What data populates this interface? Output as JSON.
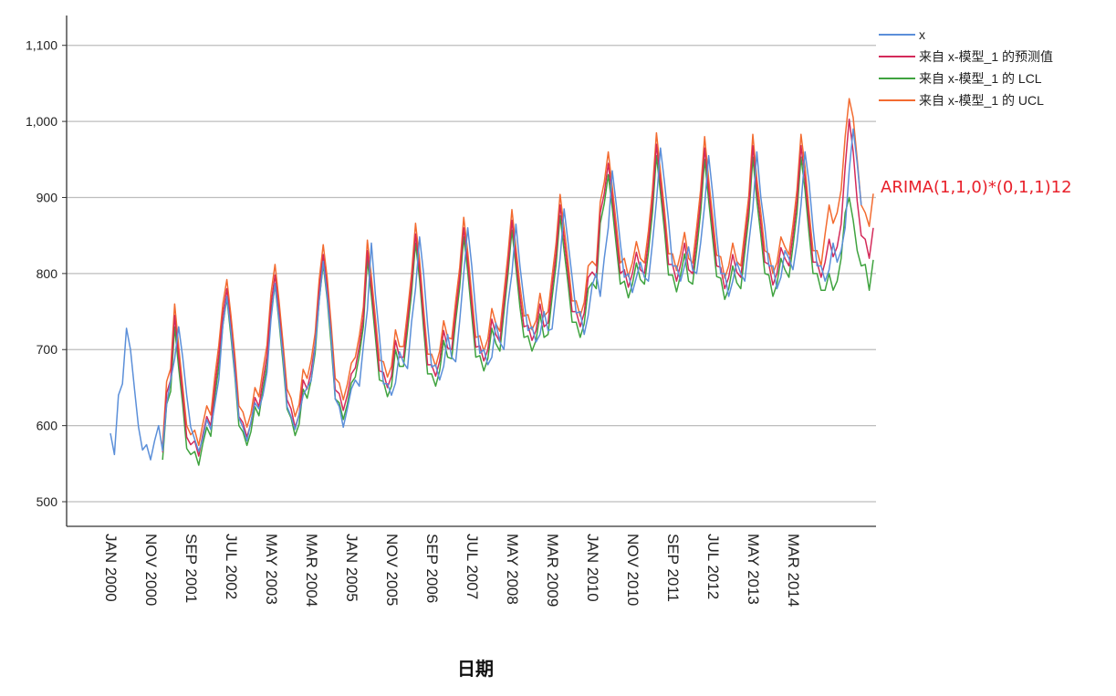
{
  "chart_data": {
    "type": "line",
    "title": "",
    "xlabel": "日期",
    "ylabel": "",
    "ylim": [
      470,
      1170
    ],
    "yticks": [
      500,
      600,
      700,
      800,
      900,
      1000,
      1100
    ],
    "ytick_labels": [
      "500",
      "600",
      "700",
      "800",
      "900",
      "1,000",
      "1,100"
    ],
    "grid": true,
    "legend_position": "top-right",
    "annotation": {
      "text": "ARIMA(1,1,0)*(0,1,1)12",
      "color": "#e8202a"
    },
    "xtick_labels": [
      "JAN 2000",
      "NOV 2000",
      "SEP 2001",
      "JUL 2002",
      "MAY 2003",
      "MAR 2004",
      "JAN 2005",
      "NOV 2005",
      "SEP 2006",
      "JUL 2007",
      "MAY 2008",
      "MAR 2009",
      "JAN 2010",
      "NOV 2010",
      "SEP 2011",
      "JUL 2012",
      "MAY 2013",
      "MAR 2014"
    ],
    "x_start": "2000-01",
    "actual_end": "2014-12",
    "fit_start": "2001-02",
    "fit_end": "2015-06",
    "series": [
      {
        "name": "x",
        "color": "#5b8fd9",
        "values": [
          590,
          562,
          640,
          655,
          728,
          700,
          648,
          598,
          568,
          575,
          555,
          580,
          600,
          567,
          628,
          660,
          688,
          730,
          690,
          640,
          598,
          582,
          566,
          583,
          608,
          595,
          628,
          661,
          732,
          770,
          725,
          668,
          610,
          598,
          580,
          605,
          630,
          622,
          640,
          670,
          740,
          787,
          740,
          690,
          625,
          612,
          595,
          615,
          640,
          650,
          659,
          705,
          764,
          816,
          770,
          715,
          635,
          625,
          598,
          622,
          648,
          660,
          652,
          705,
          752,
          840,
          772,
          718,
          655,
          655,
          640,
          656,
          697,
          683,
          675,
          736,
          780,
          848,
          800,
          733,
          677,
          680,
          660,
          678,
          720,
          690,
          684,
          738,
          800,
          860,
          810,
          750,
          695,
          700,
          680,
          690,
          735,
          710,
          700,
          760,
          800,
          865,
          810,
          765,
          725,
          730,
          710,
          720,
          750,
          725,
          727,
          775,
          820,
          885,
          840,
          795,
          748,
          750,
          720,
          745,
          785,
          800,
          770,
          820,
          860,
          935,
          890,
          840,
          795,
          800,
          775,
          795,
          815,
          795,
          790,
          840,
          895,
          965,
          920,
          870,
          810,
          810,
          790,
          810,
          835,
          805,
          800,
          840,
          890,
          955,
          905,
          850,
          800,
          800,
          770,
          790,
          815,
          800,
          790,
          840,
          885,
          960,
          900,
          860,
          810,
          810,
          780,
          795,
          830,
          820,
          805,
          840,
          890,
          960,
          920,
          860,
          810,
          810,
          790,
          805,
          840,
          815,
          830,
          860,
          935,
          990,
          945,
          890
        ]
      },
      {
        "name": "来自 x-模型_1 的预测值",
        "color": "#d42a5a",
        "values": [
          565,
          643,
          660,
          745,
          690,
          640,
          585,
          575,
          580,
          560,
          588,
          612,
          600,
          650,
          692,
          746,
          780,
          732,
          678,
          612,
          604,
          585,
          603,
          637,
          625,
          660,
          692,
          760,
          798,
          750,
          695,
          634,
          622,
          598,
          614,
          660,
          648,
          672,
          708,
          778,
          825,
          780,
          718,
          647,
          642,
          620,
          640,
          668,
          676,
          705,
          742,
          830,
          782,
          728,
          672,
          670,
          650,
          665,
          712,
          690,
          690,
          737,
          786,
          852,
          805,
          740,
          680,
          680,
          665,
          685,
          725,
          702,
          700,
          750,
          795,
          860,
          815,
          758,
          703,
          705,
          685,
          700,
          740,
          720,
          710,
          760,
          810,
          870,
          820,
          770,
          730,
          732,
          712,
          725,
          760,
          730,
          735,
          782,
          826,
          890,
          845,
          800,
          750,
          750,
          730,
          748,
          795,
          802,
          795,
          880,
          905,
          945,
          900,
          850,
          800,
          805,
          782,
          800,
          828,
          805,
          800,
          842,
          895,
          970,
          920,
          870,
          812,
          812,
          790,
          812,
          840,
          805,
          800,
          845,
          895,
          965,
          910,
          860,
          810,
          808,
          780,
          795,
          825,
          802,
          795,
          842,
          888,
          968,
          910,
          865,
          815,
          812,
          785,
          800,
          834,
          820,
          810,
          850,
          895,
          968,
          925,
          868,
          815,
          815,
          795,
          815,
          845,
          822,
          835,
          865,
          940,
          1003,
          960,
          895,
          850,
          845,
          820,
          860
        ]
      },
      {
        "name": "来自 x-模型_1 的 LCL",
        "color": "#3fa33f",
        "values": [
          555,
          628,
          645,
          730,
          676,
          628,
          570,
          562,
          566,
          548,
          576,
          598,
          586,
          638,
          678,
          732,
          768,
          718,
          665,
          600,
          592,
          574,
          592,
          625,
          613,
          648,
          680,
          748,
          785,
          736,
          682,
          622,
          610,
          587,
          602,
          648,
          636,
          660,
          696,
          765,
          812,
          766,
          705,
          635,
          630,
          608,
          628,
          656,
          664,
          693,
          730,
          818,
          770,
          716,
          660,
          658,
          638,
          652,
          700,
          678,
          678,
          725,
          774,
          840,
          792,
          728,
          668,
          668,
          652,
          672,
          712,
          690,
          688,
          738,
          782,
          848,
          802,
          745,
          690,
          692,
          672,
          688,
          728,
          708,
          698,
          748,
          798,
          857,
          808,
          756,
          716,
          718,
          698,
          712,
          747,
          716,
          720,
          768,
          812,
          876,
          830,
          786,
          736,
          736,
          716,
          734,
          780,
          788,
          780,
          866,
          892,
          930,
          886,
          836,
          786,
          790,
          768,
          786,
          814,
          792,
          786,
          828,
          880,
          955,
          906,
          856,
          798,
          798,
          776,
          798,
          826,
          790,
          786,
          830,
          880,
          950,
          896,
          846,
          796,
          794,
          766,
          780,
          810,
          788,
          780,
          828,
          874,
          953,
          896,
          850,
          800,
          798,
          770,
          786,
          820,
          805,
          795,
          836,
          880,
          953,
          910,
          853,
          800,
          800,
          778,
          778,
          800,
          778,
          790,
          820,
          880,
          900,
          870,
          830,
          810,
          812,
          778,
          818
        ]
      },
      {
        "name": "来自 x-模型_1 的 UCL",
        "color": "#f36b30",
        "values": [
          575,
          658,
          675,
          760,
          704,
          652,
          600,
          588,
          594,
          574,
          602,
          626,
          614,
          664,
          706,
          760,
          792,
          746,
          692,
          626,
          618,
          598,
          616,
          650,
          638,
          674,
          706,
          774,
          812,
          764,
          708,
          648,
          636,
          612,
          628,
          674,
          662,
          686,
          722,
          792,
          838,
          794,
          732,
          662,
          656,
          634,
          654,
          682,
          690,
          718,
          756,
          844,
          796,
          742,
          686,
          684,
          664,
          678,
          726,
          704,
          704,
          750,
          800,
          866,
          818,
          754,
          694,
          694,
          678,
          698,
          738,
          716,
          714,
          764,
          808,
          874,
          828,
          772,
          716,
          718,
          698,
          714,
          754,
          734,
          724,
          774,
          824,
          884,
          834,
          784,
          744,
          746,
          726,
          738,
          774,
          744,
          750,
          796,
          840,
          904,
          860,
          814,
          764,
          764,
          744,
          762,
          810,
          816,
          810,
          894,
          920,
          960,
          914,
          864,
          814,
          820,
          796,
          814,
          842,
          820,
          814,
          856,
          910,
          985,
          934,
          884,
          826,
          826,
          804,
          826,
          854,
          820,
          814,
          860,
          910,
          980,
          924,
          874,
          824,
          822,
          794,
          810,
          840,
          816,
          810,
          856,
          902,
          983,
          924,
          880,
          830,
          826,
          800,
          814,
          848,
          835,
          825,
          864,
          910,
          983,
          940,
          882,
          830,
          830,
          810,
          852,
          890,
          866,
          880,
          910,
          980,
          1030,
          1005,
          950,
          890,
          880,
          862,
          905
        ]
      }
    ]
  }
}
